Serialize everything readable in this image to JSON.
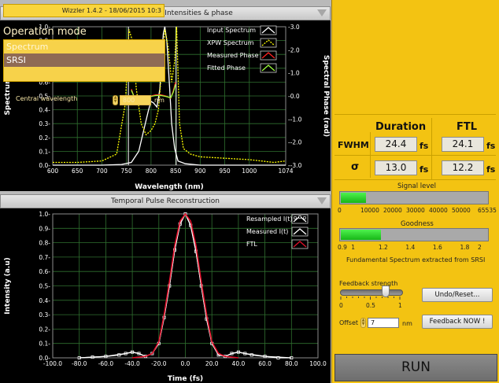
{
  "top_chart": {
    "panel_title": "Retrieved spectral Intensities & phase",
    "xlabel": "Wavelength (nm)",
    "ylabel": "Spectrum",
    "y2label": "Spectral Phase (rad)",
    "x_ticks": [
      "600",
      "650",
      "700",
      "750",
      "800",
      "850",
      "900",
      "950",
      "1000",
      "1074"
    ],
    "y_ticks": [
      "0.0",
      "0.1",
      "0.2",
      "0.3",
      "0.4",
      "0.5",
      "0.6",
      "0.7",
      "0.8",
      "0.9",
      "1.0"
    ],
    "y2_ticks": [
      "3.0",
      "2.0",
      "1.0",
      "0.0",
      "-1.0",
      "-2.0",
      "-3.0"
    ],
    "legend": [
      "Input Spectrum",
      "XPW Spectrum",
      "Measured Phase",
      "Fitted Phase"
    ]
  },
  "bottom_chart": {
    "panel_title": "Temporal Pulse Reconstruction",
    "xlabel": "Time (fs)",
    "ylabel": "Intensity (a.u)",
    "x_ticks": [
      "-100.0",
      "-80.0",
      "-60.0",
      "-40.0",
      "-20.0",
      "0.0",
      "20.0",
      "40.0",
      "60.0",
      "80.0",
      "100.0"
    ],
    "y_ticks": [
      "0.0",
      "0.1",
      "0.2",
      "0.3",
      "0.4",
      "0.5",
      "0.6",
      "0.7",
      "0.8",
      "0.9",
      "1.0"
    ],
    "legend": [
      "Resampled I(t)",
      "Measured I(t)",
      "FTL"
    ]
  },
  "chart_data": [
    {
      "type": "line",
      "title": "Retrieved spectral Intensities & phase",
      "xlabel": "Wavelength (nm)",
      "ylabel": "Spectrum",
      "y2label": "Spectral Phase (rad)",
      "xlim": [
        600,
        1074
      ],
      "ylim": [
        0,
        1
      ],
      "y2lim": [
        -3,
        3
      ],
      "grid": true,
      "legend_position": "top-right",
      "vertical_markers": [
        754,
        851
      ],
      "series": [
        {
          "name": "Input Spectrum",
          "axis": "left",
          "color": "#ffffff",
          "x": [
            600,
            650,
            700,
            740,
            760,
            775,
            785,
            795,
            800,
            805,
            812,
            818,
            822,
            825,
            828,
            832,
            838,
            842,
            848,
            855,
            870,
            900,
            1000,
            1074
          ],
          "y": [
            0,
            0,
            0,
            0.005,
            0.02,
            0.1,
            0.25,
            0.4,
            0.46,
            0.45,
            0.42,
            0.55,
            0.8,
            0.95,
            1.0,
            0.9,
            0.55,
            0.3,
            0.12,
            0.03,
            0.01,
            0,
            0,
            0
          ]
        },
        {
          "name": "XPW Spectrum",
          "axis": "left",
          "color": "#ffff00",
          "x": [
            600,
            650,
            700,
            730,
            748,
            755,
            762,
            770,
            780,
            790,
            800,
            808,
            815,
            822,
            828,
            835,
            842,
            848,
            852,
            858,
            866,
            880,
            900,
            950,
            1000,
            1050,
            1074
          ],
          "y": [
            0.02,
            0.02,
            0.03,
            0.08,
            0.45,
            0.98,
            0.9,
            0.55,
            0.3,
            0.22,
            0.25,
            0.3,
            0.4,
            0.7,
            0.98,
            0.85,
            0.6,
            0.75,
            1.0,
            0.3,
            0.12,
            0.08,
            0.06,
            0.05,
            0.04,
            0.02,
            0.03
          ]
        },
        {
          "name": "Measured Phase",
          "axis": "right",
          "color": "#ff2020",
          "x": [
            760,
            765,
            770,
            780,
            790,
            800,
            810,
            820,
            830,
            840,
            845,
            850
          ],
          "y": [
            0.3,
            0.0,
            -0.1,
            -0.1,
            -0.05,
            0.0,
            0.05,
            0.05,
            0.0,
            -0.1,
            0.2,
            0.6
          ]
        },
        {
          "name": "Fitted Phase",
          "axis": "right",
          "color": "#9cff3c",
          "x": [
            760,
            765,
            770,
            780,
            790,
            800,
            810,
            820,
            830,
            840,
            845,
            850
          ],
          "y": [
            0.25,
            0.0,
            -0.1,
            -0.12,
            -0.08,
            -0.02,
            0.02,
            0.02,
            -0.02,
            -0.08,
            0.15,
            0.5
          ]
        }
      ]
    },
    {
      "type": "line",
      "title": "Temporal Pulse Reconstruction",
      "xlabel": "Time (fs)",
      "ylabel": "Intensity (a.u)",
      "xlim": [
        -100,
        100
      ],
      "ylim": [
        0,
        1
      ],
      "grid": true,
      "legend_position": "top-right",
      "series": [
        {
          "name": "Resampled I(t)",
          "color": "#ffffff",
          "markers": true,
          "x": [
            -80,
            -70,
            -60,
            -50,
            -45,
            -40,
            -35,
            -30,
            -25,
            -20,
            -16,
            -12,
            -8,
            -4,
            0,
            4,
            8,
            12,
            16,
            20,
            25,
            30,
            35,
            40,
            45,
            50,
            60,
            70,
            80
          ],
          "y": [
            0.0,
            0.005,
            0.01,
            0.02,
            0.03,
            0.04,
            0.03,
            0.01,
            0.03,
            0.1,
            0.28,
            0.5,
            0.75,
            0.93,
            1.0,
            0.92,
            0.74,
            0.5,
            0.27,
            0.1,
            0.02,
            0.01,
            0.03,
            0.04,
            0.03,
            0.02,
            0.01,
            0.0,
            0.0
          ]
        },
        {
          "name": "Measured I(t)",
          "color": "#ffffff",
          "x": [
            -80,
            -60,
            -45,
            -40,
            -35,
            -30,
            -25,
            -20,
            -16,
            -12,
            -8,
            -4,
            0,
            4,
            8,
            12,
            16,
            20,
            25,
            30,
            35,
            40,
            45,
            60,
            80
          ],
          "y": [
            0.0,
            0.01,
            0.03,
            0.04,
            0.03,
            0.01,
            0.03,
            0.1,
            0.28,
            0.5,
            0.75,
            0.93,
            1.0,
            0.92,
            0.74,
            0.5,
            0.27,
            0.1,
            0.02,
            0.01,
            0.03,
            0.04,
            0.03,
            0.01,
            0.0
          ]
        },
        {
          "name": "FTL",
          "color": "#e0102a",
          "x": [
            -40,
            -30,
            -25,
            -20,
            -16,
            -12,
            -8,
            -4,
            0,
            4,
            8,
            12,
            16,
            20,
            25,
            30,
            40
          ],
          "y": [
            0.0,
            0.01,
            0.03,
            0.11,
            0.3,
            0.53,
            0.78,
            0.95,
            1.0,
            0.95,
            0.78,
            0.53,
            0.3,
            0.11,
            0.03,
            0.01,
            0.0
          ]
        }
      ]
    }
  ],
  "control_panel": {
    "title": "Wizzler 1.4.2 - 18/06/2015 10:3",
    "operation_mode_label": "Operation mode",
    "operation_modes": [
      "Spectrum",
      "SRSI"
    ],
    "selected_mode": "SRSI",
    "central_wavelength_label": "Central wavelength",
    "central_wavelength_value": "800",
    "central_wavelength_unit": "nm",
    "duration_header": "Duration",
    "ftl_header": "FTL",
    "fwhm_label": "FWHM",
    "fwhm_duration": "24.4",
    "fwhm_ftl": "24.1",
    "sigma_label": "σ",
    "sigma_duration": "13.0",
    "sigma_ftl": "12.2",
    "unit_fs": "fs",
    "signal_level_label": "Signal level",
    "signal_level_value": 11000,
    "signal_level_max": 65535,
    "signal_ticks": [
      "0",
      "10000",
      "20000",
      "30000",
      "40000",
      "50000",
      "65535"
    ],
    "goodness_label": "Goodness",
    "goodness_value": 1.2,
    "goodness_range": [
      0.9,
      2
    ],
    "goodness_ticks": [
      "0.9",
      "1",
      "1.2",
      "1.4",
      "1.6",
      "1.8",
      "2"
    ],
    "fundamental_label": "Fundamental Spectrum extracted from SRSI",
    "feedback_strength_label": "Feedback strength",
    "feedback_strength_value": 0.75,
    "feedback_ticks": [
      "0",
      "0.5",
      "1"
    ],
    "undo_button": "Undo/Reset...",
    "offset_label": "Offset",
    "offset_value": "7",
    "offset_unit": "nm",
    "feedback_button": "Feedback NOW !",
    "run_button": "RUN"
  },
  "colors": {
    "plot_bg": "#000000",
    "grid": "#2f6f2f",
    "panel_accent": "#f3c312",
    "meter_fill": "#27d127"
  }
}
